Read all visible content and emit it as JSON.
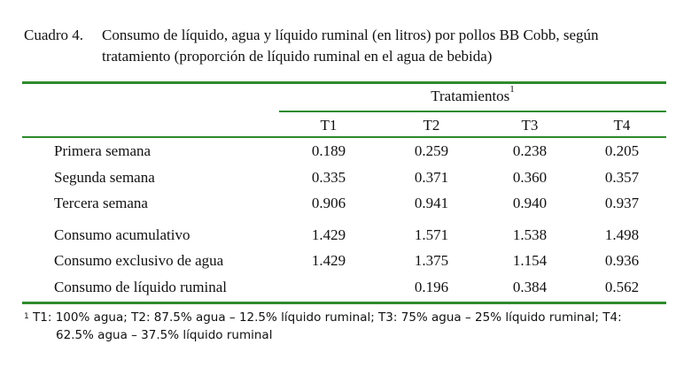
{
  "caption": {
    "number": "Cuadro 4.",
    "text": "Consumo de líquido, agua y líquido ruminal (en litros) por pollos BB Cobb, según tratamiento (proporción de líquido ruminal en el agua de bebida)"
  },
  "table": {
    "group_header": "Tratamientos",
    "group_header_note": "1",
    "columns": [
      "T1",
      "T2",
      "T3",
      "T4"
    ],
    "rows": [
      {
        "label": "Primera semana",
        "values": [
          "0.189",
          "0.259",
          "0.238",
          "0.205"
        ]
      },
      {
        "label": "Segunda semana",
        "values": [
          "0.335",
          "0.371",
          "0.360",
          "0.357"
        ]
      },
      {
        "label": "Tercera semana",
        "values": [
          "0.906",
          "0.941",
          "0.940",
          "0.937"
        ]
      },
      {
        "label": "Consumo acumulativo",
        "values": [
          "1.429",
          "1.571",
          "1.538",
          "1.498"
        ]
      },
      {
        "label": "Consumo exclusivo de agua",
        "values": [
          "1.429",
          "1.375",
          "1.154",
          "0.936"
        ]
      },
      {
        "label": "Consumo de líquido ruminal",
        "values": [
          "",
          "0.196",
          "0.384",
          "0.562"
        ]
      }
    ]
  },
  "footnote": {
    "marker": "1",
    "line1": "T1: 100% agua; T2: 87.5% agua – 12.5% líquido ruminal; T3: 75% agua – 25% líquido ruminal; T4:",
    "line2": "62.5% agua – 37.5% líquido ruminal"
  },
  "colors": {
    "rule": "#2e8b2e"
  }
}
